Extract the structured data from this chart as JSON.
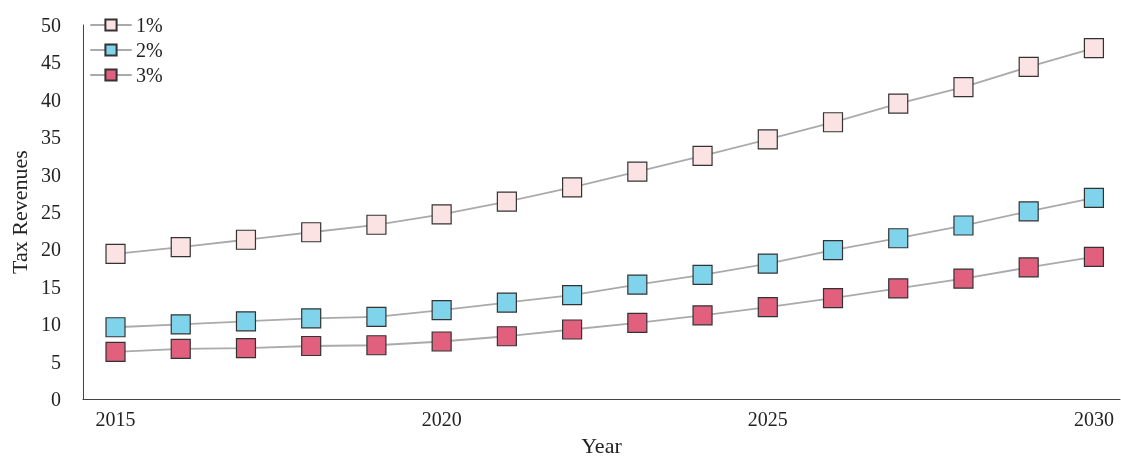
{
  "chart_data": {
    "type": "line",
    "xlabel": "Year",
    "ylabel": "Tax Revenues",
    "x": [
      2015,
      2016,
      2017,
      2018,
      2019,
      2020,
      2021,
      2022,
      2023,
      2024,
      2025,
      2026,
      2027,
      2028,
      2029,
      2030
    ],
    "series": [
      {
        "name": "1%",
        "color": "#fbe3e4",
        "values": [
          19.4,
          20.3,
          21.3,
          22.3,
          23.3,
          24.7,
          26.4,
          28.3,
          30.4,
          32.5,
          34.7,
          37.0,
          39.5,
          41.7,
          44.4,
          46.9
        ]
      },
      {
        "name": "2%",
        "color": "#7fd3ea",
        "values": [
          9.6,
          10.0,
          10.4,
          10.8,
          11.0,
          11.9,
          12.9,
          13.9,
          15.3,
          16.6,
          18.1,
          19.9,
          21.5,
          23.2,
          25.1,
          26.9
        ]
      },
      {
        "name": "3%",
        "color": "#e0607e",
        "values": [
          6.3,
          6.7,
          6.8,
          7.1,
          7.2,
          7.7,
          8.4,
          9.3,
          10.2,
          11.2,
          12.3,
          13.5,
          14.8,
          16.1,
          17.6,
          19.0
        ]
      }
    ],
    "xlim": [
      2014.5,
      2030.4
    ],
    "xticks": [
      2015,
      2020,
      2025,
      2030
    ],
    "ylim": [
      0,
      50
    ],
    "yticks": [
      0,
      5,
      10,
      15,
      20,
      25,
      30,
      35,
      40,
      45,
      50
    ],
    "grid": false,
    "legend": "top left",
    "marker": "square",
    "line_style": "solid"
  }
}
